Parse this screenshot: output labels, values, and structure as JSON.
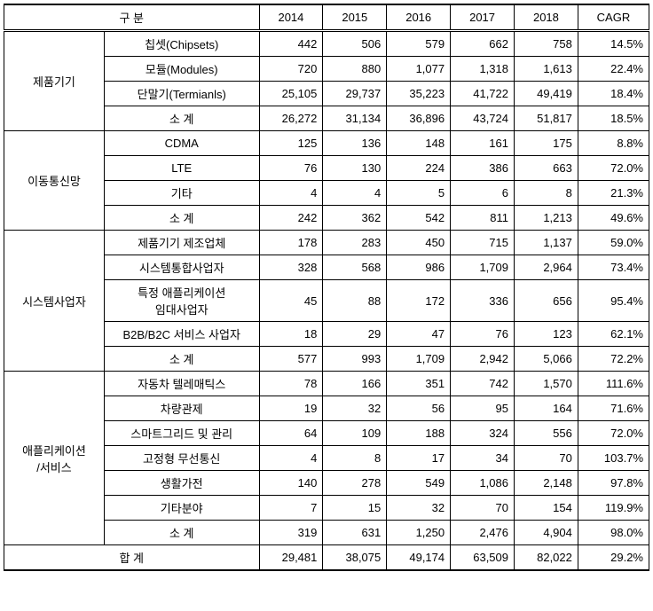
{
  "header": {
    "category_label": "구 분",
    "years": [
      "2014",
      "2015",
      "2016",
      "2017",
      "2018"
    ],
    "cagr_label": "CAGR"
  },
  "groups": [
    {
      "name": "제품기기",
      "rows": [
        {
          "label": "칩셋(Chipsets)",
          "vals": [
            "442",
            "506",
            "579",
            "662",
            "758"
          ],
          "cagr": "14.5%"
        },
        {
          "label": "모듈(Modules)",
          "vals": [
            "720",
            "880",
            "1,077",
            "1,318",
            "1,613"
          ],
          "cagr": "22.4%"
        },
        {
          "label": "단말기(Termianls)",
          "vals": [
            "25,105",
            "29,737",
            "35,223",
            "41,722",
            "49,419"
          ],
          "cagr": "18.4%"
        },
        {
          "label": "소 계",
          "vals": [
            "26,272",
            "31,134",
            "36,896",
            "43,724",
            "51,817"
          ],
          "cagr": "18.5%"
        }
      ]
    },
    {
      "name": "이동통신망",
      "rows": [
        {
          "label": "CDMA",
          "vals": [
            "125",
            "136",
            "148",
            "161",
            "175"
          ],
          "cagr": "8.8%"
        },
        {
          "label": "LTE",
          "vals": [
            "76",
            "130",
            "224",
            "386",
            "663"
          ],
          "cagr": "72.0%"
        },
        {
          "label": "기타",
          "vals": [
            "4",
            "4",
            "5",
            "6",
            "8"
          ],
          "cagr": "21.3%"
        },
        {
          "label": "소 계",
          "vals": [
            "242",
            "362",
            "542",
            "811",
            "1,213"
          ],
          "cagr": "49.6%"
        }
      ]
    },
    {
      "name": "시스템사업자",
      "rows": [
        {
          "label": "제품기기 제조업체",
          "vals": [
            "178",
            "283",
            "450",
            "715",
            "1,137"
          ],
          "cagr": "59.0%"
        },
        {
          "label": "시스템통합사업자",
          "vals": [
            "328",
            "568",
            "986",
            "1,709",
            "2,964"
          ],
          "cagr": "73.4%"
        },
        {
          "label": "특정 애플리케이션\n임대사업자",
          "vals": [
            "45",
            "88",
            "172",
            "336",
            "656"
          ],
          "cagr": "95.4%"
        },
        {
          "label": "B2B/B2C 서비스 사업자",
          "vals": [
            "18",
            "29",
            "47",
            "76",
            "123"
          ],
          "cagr": "62.1%"
        },
        {
          "label": "소 계",
          "vals": [
            "577",
            "993",
            "1,709",
            "2,942",
            "5,066"
          ],
          "cagr": "72.2%"
        }
      ]
    },
    {
      "name": "애플리케이션\n/서비스",
      "rows": [
        {
          "label": "자동차 텔레매틱스",
          "vals": [
            "78",
            "166",
            "351",
            "742",
            "1,570"
          ],
          "cagr": "111.6%"
        },
        {
          "label": "차량관제",
          "vals": [
            "19",
            "32",
            "56",
            "95",
            "164"
          ],
          "cagr": "71.6%"
        },
        {
          "label": "스마트그리드 및 관리",
          "vals": [
            "64",
            "109",
            "188",
            "324",
            "556"
          ],
          "cagr": "72.0%"
        },
        {
          "label": "고정형 무선통신",
          "vals": [
            "4",
            "8",
            "17",
            "34",
            "70"
          ],
          "cagr": "103.7%"
        },
        {
          "label": "생활가전",
          "vals": [
            "140",
            "278",
            "549",
            "1,086",
            "2,148"
          ],
          "cagr": "97.8%"
        },
        {
          "label": "기타분야",
          "vals": [
            "7",
            "15",
            "32",
            "70",
            "154"
          ],
          "cagr": "119.9%"
        },
        {
          "label": "소 계",
          "vals": [
            "319",
            "631",
            "1,250",
            "2,476",
            "4,904"
          ],
          "cagr": "98.0%"
        }
      ]
    }
  ],
  "total": {
    "label": "합 계",
    "vals": [
      "29,481",
      "38,075",
      "49,174",
      "63,509",
      "82,022"
    ],
    "cagr": "29.2%"
  }
}
